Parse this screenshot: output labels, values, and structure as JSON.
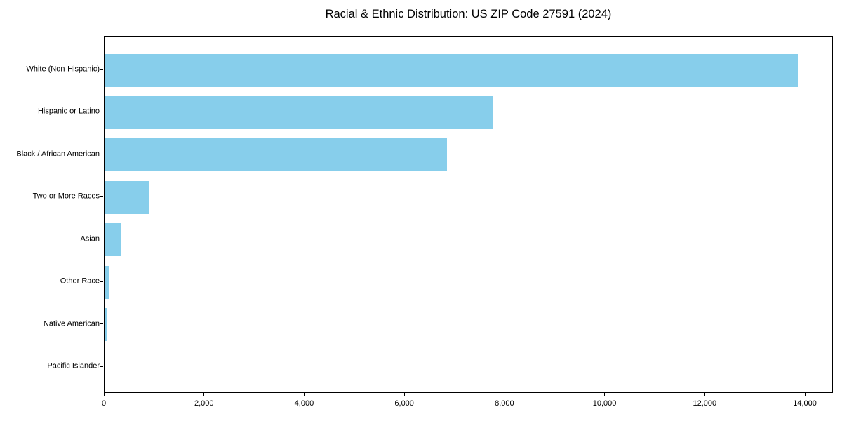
{
  "chart_data": {
    "type": "bar",
    "orientation": "horizontal",
    "title": "Racial & Ethnic Distribution: US ZIP Code 27591 (2024)",
    "categories": [
      "White (Non-Hispanic)",
      "Hispanic or Latino",
      "Black / African American",
      "Two or More Races",
      "Asian",
      "Other Race",
      "Native American",
      "Pacific Islander"
    ],
    "values": [
      13860,
      7760,
      6840,
      885,
      325,
      100,
      60,
      0
    ],
    "xlabel": "",
    "ylabel": "",
    "xlim": [
      0,
      14560
    ],
    "x_ticks": [
      0,
      2000,
      4000,
      6000,
      8000,
      10000,
      12000,
      14000
    ],
    "x_tick_labels": [
      "0",
      "2,000",
      "4,000",
      "6,000",
      "8,000",
      "10,000",
      "12,000",
      "14,000"
    ],
    "bar_color": "#87ceeb",
    "axis_color": "#000000",
    "text_color": "#000000",
    "grid": false,
    "legend": null
  }
}
